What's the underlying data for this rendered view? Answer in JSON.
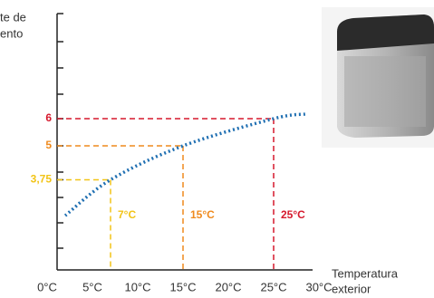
{
  "chart_data": {
    "type": "line",
    "y_label_lines": [
      "te de",
      "ento"
    ],
    "x_label_lines": [
      "Temperatura",
      "exterior"
    ],
    "x": [
      2,
      7,
      15,
      25,
      28.5
    ],
    "series": [
      {
        "color": "#1f6fb2",
        "values": [
          2.43,
          3.75,
          5,
          6,
          6.17
        ]
      }
    ],
    "xlim": [
      1.1,
      29.3
    ],
    "ylim": [
      0.43,
      9.87
    ],
    "xticks": [
      {
        "value": 0,
        "label": "0°C"
      },
      {
        "value": 5,
        "label": "5°C"
      },
      {
        "value": 10,
        "label": "10°C"
      },
      {
        "value": 15,
        "label": "15°C"
      },
      {
        "value": 20,
        "label": "20°C"
      },
      {
        "value": 25,
        "label": "25°C"
      },
      {
        "value": 30,
        "label": "30°C"
      }
    ],
    "yticks": [
      {
        "value": 3.75,
        "label": "3,75"
      },
      5,
      6
    ],
    "reference_points": [
      {
        "x": 7,
        "y": 3.75,
        "label": "7°C",
        "color": "#f2c417"
      },
      {
        "x": 15,
        "y": 5,
        "label": "15°C",
        "color": "#ef8a1d"
      },
      {
        "x": 25,
        "y": 6,
        "label": "25°C",
        "color": "#d6192d"
      }
    ]
  }
}
